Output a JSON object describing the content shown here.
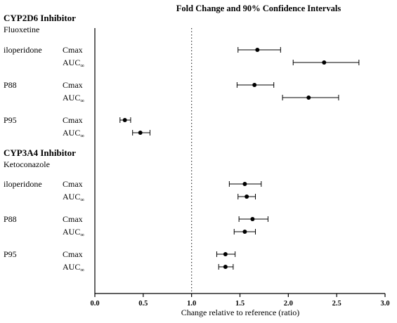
{
  "chart_data": {
    "type": "forest",
    "title": "Fold  Change and 90% Confidence Intervals",
    "xlabel": "Change relative to reference (ratio)",
    "xlim": [
      0.0,
      3.0
    ],
    "x_ticks": [
      "0.0",
      "0.5",
      "1.0",
      "1.5",
      "2.0",
      "2.5",
      "3.0"
    ],
    "reference_line": 1.0,
    "groups": [
      {
        "title": "CYP2D6 Inhibitor",
        "subtitle": "Fluoxetine",
        "analytes": [
          {
            "name": "iloperidone",
            "rows": [
              {
                "metric": "Cmax",
                "estimate": 1.68,
                "lower": 1.48,
                "upper": 1.92
              },
              {
                "metric": "AUC∞",
                "estimate": 2.37,
                "lower": 2.05,
                "upper": 2.73
              }
            ]
          },
          {
            "name": "P88",
            "rows": [
              {
                "metric": "Cmax",
                "estimate": 1.65,
                "lower": 1.47,
                "upper": 1.85
              },
              {
                "metric": "AUC∞",
                "estimate": 2.21,
                "lower": 1.94,
                "upper": 2.52
              }
            ]
          },
          {
            "name": "P95",
            "rows": [
              {
                "metric": "Cmax",
                "estimate": 0.31,
                "lower": 0.26,
                "upper": 0.37
              },
              {
                "metric": "AUC∞",
                "estimate": 0.47,
                "lower": 0.39,
                "upper": 0.57
              }
            ]
          }
        ]
      },
      {
        "title": "CYP3A4 Inhibitor",
        "subtitle": "Ketoconazole",
        "analytes": [
          {
            "name": "iloperidone",
            "rows": [
              {
                "metric": "Cmax",
                "estimate": 1.55,
                "lower": 1.39,
                "upper": 1.72
              },
              {
                "metric": "AUC∞",
                "estimate": 1.57,
                "lower": 1.48,
                "upper": 1.66
              }
            ]
          },
          {
            "name": "P88",
            "rows": [
              {
                "metric": "Cmax",
                "estimate": 1.63,
                "lower": 1.49,
                "upper": 1.79
              },
              {
                "metric": "AUC∞",
                "estimate": 1.55,
                "lower": 1.44,
                "upper": 1.66
              }
            ]
          },
          {
            "name": "P95",
            "rows": [
              {
                "metric": "Cmax",
                "estimate": 1.35,
                "lower": 1.26,
                "upper": 1.45
              },
              {
                "metric": "AUC∞",
                "estimate": 1.35,
                "lower": 1.28,
                "upper": 1.43
              }
            ]
          }
        ]
      }
    ]
  }
}
